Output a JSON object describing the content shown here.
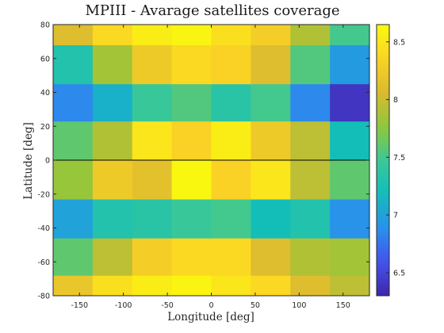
{
  "chart_data": {
    "type": "heatmap",
    "title": "MPIII - Avarage satellites coverage",
    "xlabel": "Longitude [deg]",
    "ylabel": "Latitude [deg]",
    "xlim": [
      -180,
      180
    ],
    "ylim": [
      -80,
      80
    ],
    "x_ticks": [
      -150,
      -100,
      -50,
      0,
      50,
      100,
      150
    ],
    "y_ticks": [
      -80,
      -60,
      -40,
      -20,
      0,
      20,
      40,
      60,
      80
    ],
    "x_edges": [
      -180,
      -135,
      -90,
      -45,
      0,
      45,
      90,
      135,
      180
    ],
    "y_edges": [
      -80,
      -68,
      -46,
      -23,
      0,
      23,
      45,
      68,
      80
    ],
    "values": [
      [
        8.2,
        8.45,
        8.55,
        8.6,
        8.5,
        8.4,
        8.1,
        7.95
      ],
      [
        7.6,
        7.95,
        8.3,
        8.4,
        8.4,
        8.1,
        7.9,
        7.85
      ],
      [
        7.0,
        7.3,
        7.35,
        7.45,
        7.5,
        7.2,
        7.3,
        6.9
      ],
      [
        7.8,
        8.25,
        8.15,
        8.62,
        8.35,
        8.5,
        7.95,
        7.6
      ],
      [
        7.6,
        7.9,
        8.5,
        8.35,
        8.55,
        8.25,
        7.95,
        7.2
      ],
      [
        6.85,
        7.1,
        7.45,
        7.55,
        7.35,
        7.5,
        6.85,
        6.4
      ],
      [
        7.3,
        7.85,
        8.25,
        8.4,
        8.35,
        8.1,
        7.55,
        6.95
      ],
      [
        8.1,
        8.4,
        8.55,
        8.6,
        8.45,
        8.3,
        7.9,
        7.5
      ]
    ],
    "clim": [
      6.3,
      8.65
    ],
    "colorbar_ticks": [
      6.5,
      7,
      7.5,
      8,
      8.5
    ],
    "colormap": "parula",
    "reference_line_y": 0
  }
}
